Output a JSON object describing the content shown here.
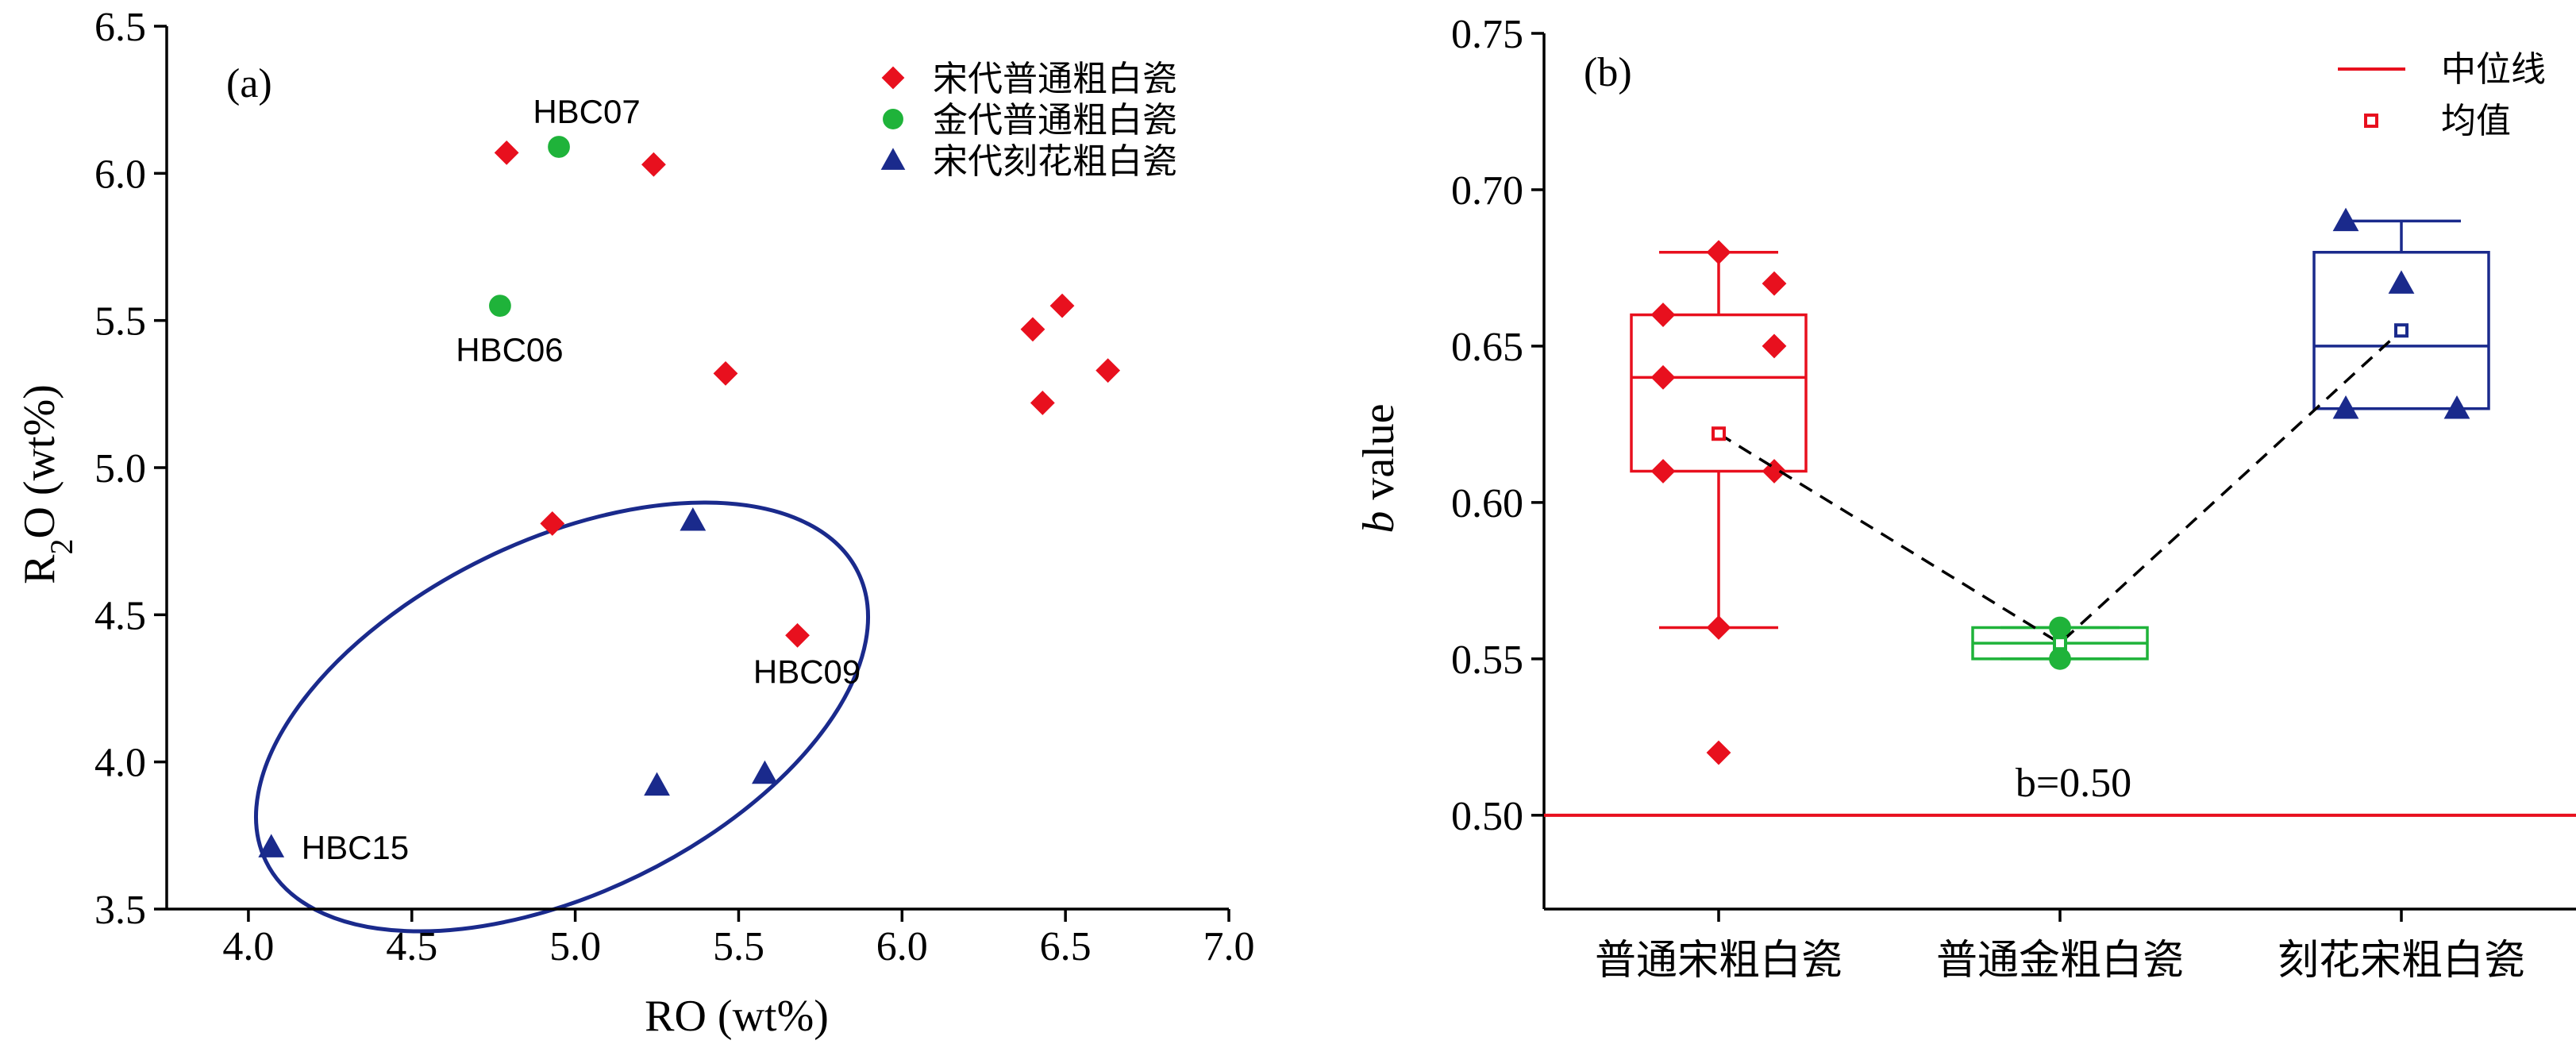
{
  "colors": {
    "song_common": "#e8101e",
    "jin_common": "#1fb33a",
    "song_carved": "#1a2a8c",
    "ellipse": "#1a2a8c",
    "median_line": "#e8101e",
    "axis": "#000000"
  },
  "chart_data": [
    {
      "type": "scatter",
      "panel_label": "(a)",
      "xlabel": "RO (wt%)",
      "ylabel": "R₂O (wt%)",
      "ylabel_main": "R",
      "ylabel_sub": "2",
      "ylabel_rest": "O (wt%)",
      "xlim": [
        3.75,
        7.0
      ],
      "ylim": [
        3.5,
        6.5
      ],
      "xticks": [
        "4.0",
        "4.5",
        "5.0",
        "5.5",
        "6.0",
        "6.5",
        "7.0"
      ],
      "yticks": [
        "3.5",
        "4.0",
        "4.5",
        "5.0",
        "5.5",
        "6.0",
        "6.5"
      ],
      "legend_position": "top-right",
      "series": [
        {
          "name": "宋代普通粗白瓷",
          "marker": "diamond",
          "color": "#e8101e",
          "points": [
            {
              "x": 4.79,
              "y": 6.07,
              "label": ""
            },
            {
              "x": 5.24,
              "y": 6.03,
              "label": ""
            },
            {
              "x": 5.46,
              "y": 5.32,
              "label": ""
            },
            {
              "x": 6.4,
              "y": 5.47,
              "label": ""
            },
            {
              "x": 6.49,
              "y": 5.55,
              "label": ""
            },
            {
              "x": 6.43,
              "y": 5.22,
              "label": ""
            },
            {
              "x": 6.63,
              "y": 5.33,
              "label": ""
            },
            {
              "x": 4.93,
              "y": 4.81,
              "label": ""
            },
            {
              "x": 5.68,
              "y": 4.43,
              "label": "HBC09"
            }
          ]
        },
        {
          "name": "金代普通粗白瓷",
          "marker": "circle",
          "color": "#1fb33a",
          "points": [
            {
              "x": 4.95,
              "y": 6.09,
              "label": "HBC07"
            },
            {
              "x": 4.77,
              "y": 5.55,
              "label": "HBC06"
            }
          ]
        },
        {
          "name": "宋代刻花粗白瓷",
          "marker": "triangle",
          "color": "#1a2a8c",
          "points": [
            {
              "x": 5.36,
              "y": 4.82,
              "label": ""
            },
            {
              "x": 5.25,
              "y": 3.92,
              "label": ""
            },
            {
              "x": 5.58,
              "y": 3.96,
              "label": ""
            },
            {
              "x": 4.07,
              "y": 3.71,
              "label": "HBC15"
            }
          ]
        }
      ]
    },
    {
      "type": "box",
      "panel_label": "(b)",
      "ylabel_italic": "b",
      "ylabel_rest": " value",
      "ylim": [
        0.47,
        0.75
      ],
      "yticks": [
        "0.50",
        "0.55",
        "0.60",
        "0.65",
        "0.70",
        "0.75"
      ],
      "categories": [
        "普通宋粗白瓷",
        "普通金粗白瓷",
        "刻花宋粗白瓷"
      ],
      "reference_line": {
        "value": 0.5,
        "label": "b=0.50"
      },
      "legend": {
        "median_label": "中位线",
        "mean_label": "均值"
      },
      "legend_position": "top-right",
      "series": [
        {
          "name": "普通宋粗白瓷",
          "color": "#e8101e",
          "marker": "diamond",
          "whisker_low": 0.56,
          "q1": 0.61,
          "median": 0.64,
          "q3": 0.66,
          "whisker_high": 0.68,
          "mean": 0.622,
          "points": [
            0.68,
            0.67,
            0.66,
            0.65,
            0.64,
            0.61,
            0.61,
            0.56,
            0.52
          ]
        },
        {
          "name": "普通金粗白瓷",
          "color": "#1fb33a",
          "marker": "circle",
          "whisker_low": 0.55,
          "q1": 0.55,
          "median": 0.555,
          "q3": 0.56,
          "whisker_high": 0.56,
          "mean": 0.555,
          "points": [
            0.56,
            0.55
          ]
        },
        {
          "name": "刻花宋粗白瓷",
          "color": "#1a2a8c",
          "marker": "triangle",
          "whisker_low": 0.63,
          "q1": 0.63,
          "median": 0.65,
          "q3": 0.68,
          "whisker_high": 0.69,
          "mean": 0.655,
          "points": [
            0.69,
            0.67,
            0.63,
            0.63
          ]
        }
      ]
    }
  ]
}
